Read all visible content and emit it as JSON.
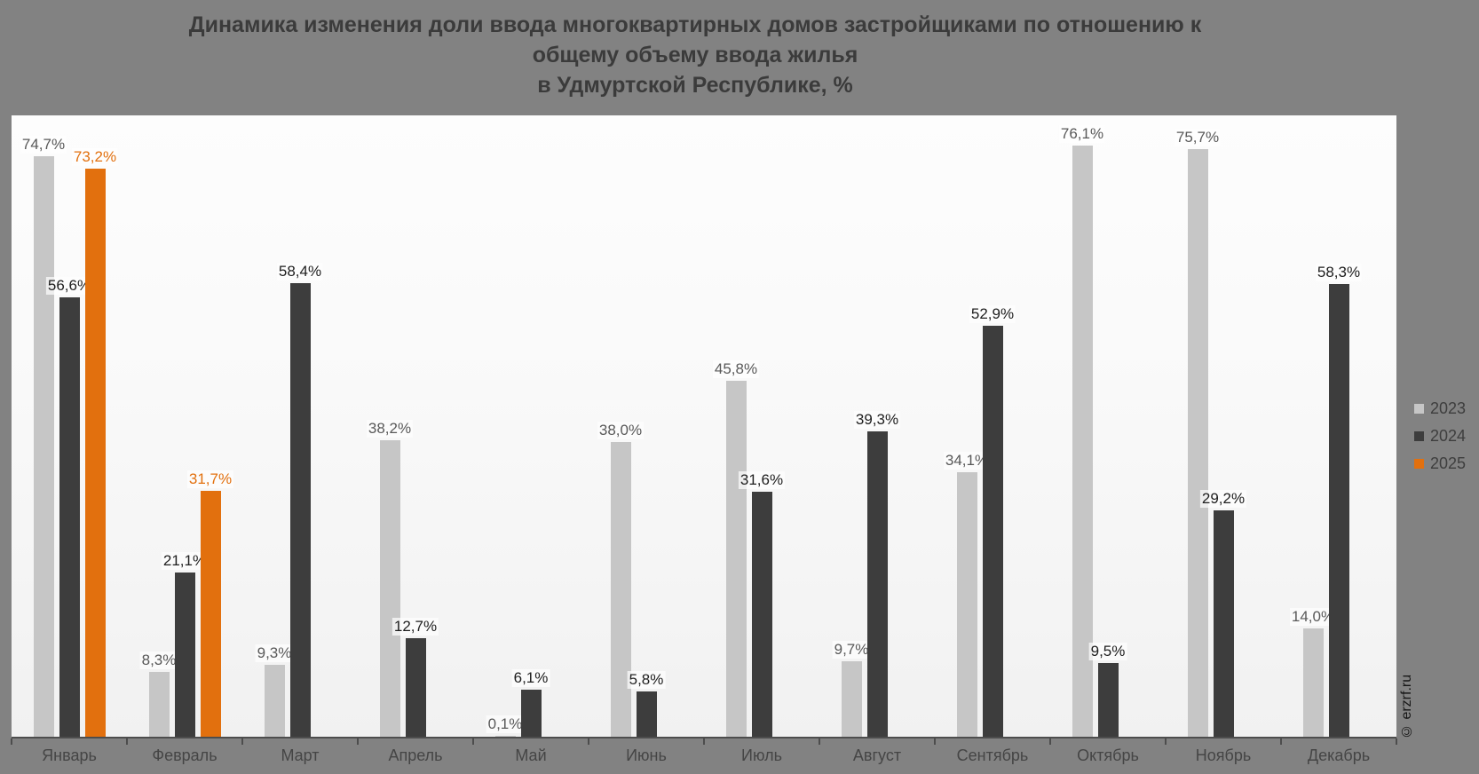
{
  "title": "Динамика изменения доли ввода многоквартирных домов застройщиками по отношению к\nобщему объему ввода жилья\nв Удмуртской Республике, %",
  "watermark": "© erzrf.ru",
  "legend": [
    {
      "label": "2023",
      "color": "#c6c6c6"
    },
    {
      "label": "2024",
      "color": "#3d3d3d"
    },
    {
      "label": "2025",
      "color": "#e2700e"
    }
  ],
  "chart_data": {
    "type": "bar",
    "title": "Динамика изменения доли ввода многоквартирных домов застройщиками по отношению к общему объему ввода жилья в Удмуртской Республике, %",
    "categories": [
      "Январь",
      "Февраль",
      "Март",
      "Апрель",
      "Май",
      "Июнь",
      "Июль",
      "Август",
      "Сентябрь",
      "Октябрь",
      "Ноябрь",
      "Декабрь"
    ],
    "series": [
      {
        "name": "2023",
        "color": "#c6c6c6",
        "label_color": "#595959",
        "values": [
          74.7,
          8.3,
          9.3,
          38.2,
          0.1,
          38.0,
          45.8,
          9.7,
          34.1,
          76.1,
          75.7,
          14.0
        ],
        "labels": [
          "74,7%",
          "8,3%",
          "9,3%",
          "38,2%",
          "0,1%",
          "38,0%",
          "45,8%",
          "9,7%",
          "34,1%",
          "76,1%",
          "75,7%",
          "14,0%"
        ]
      },
      {
        "name": "2024",
        "color": "#3d3d3d",
        "label_color": "#1e1e1e",
        "values": [
          56.6,
          21.1,
          58.4,
          12.7,
          6.1,
          5.8,
          31.6,
          39.3,
          52.9,
          9.5,
          29.2,
          58.3
        ],
        "labels": [
          "56,6%",
          "21,1%",
          "58,4%",
          "12,7%",
          "6,1%",
          "5,8%",
          "31,6%",
          "39,3%",
          "52,9%",
          "9,5%",
          "29,2%",
          "58,3%"
        ]
      },
      {
        "name": "2025",
        "color": "#e2700e",
        "label_color": "#e2700e",
        "values": [
          73.2,
          31.7,
          null,
          null,
          null,
          null,
          null,
          null,
          null,
          null,
          null,
          null
        ],
        "labels": [
          "73,2%",
          "31,7%",
          null,
          null,
          null,
          null,
          null,
          null,
          null,
          null,
          null,
          null
        ]
      }
    ],
    "value_suffix": "%",
    "xlabel": "",
    "ylabel": "",
    "ylim": [
      0,
      80
    ],
    "grid": false,
    "legend_position": "right"
  }
}
